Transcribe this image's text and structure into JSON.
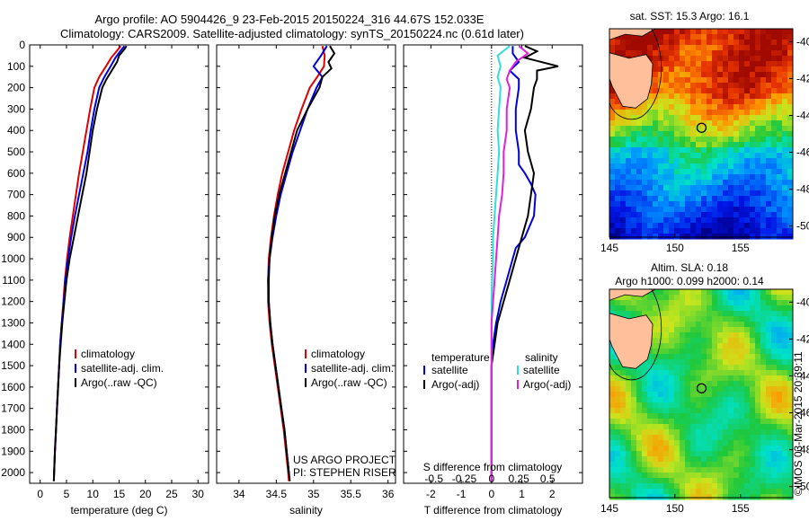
{
  "header": {
    "line1": "Argo profile: AO 5904426_9 23-Feb-2015 20150224_316 44.67S 152.033E",
    "line2": "Climatology: CARS2009. Satellite-adjusted climatology: synTS_20150224.nc (0.61d later)"
  },
  "credit": "©IMOS 03-Mar-2015 20:39:11",
  "colors": {
    "climatology": "#e00000",
    "satellite": "#0000e0",
    "argo": "#000000",
    "sal_satellite": "#33dddd",
    "sal_argo": "#dd22dd"
  },
  "chart_data": [
    {
      "type": "line",
      "name": "temperature",
      "xlabel": "temperature (deg C)",
      "xlim": [
        -2,
        32
      ],
      "ylim": [
        2050,
        0
      ],
      "xticks": [
        "0",
        "5",
        "10",
        "15",
        "20",
        "25",
        "30"
      ],
      "yticks": [
        "0",
        "100",
        "200",
        "300",
        "400",
        "500",
        "600",
        "700",
        "800",
        "900",
        "1000",
        "1100",
        "1200",
        "1300",
        "1400",
        "1500",
        "1600",
        "1700",
        "1800",
        "1900",
        "2000"
      ],
      "legend": [
        "climatology",
        "satellite-adj. clim.",
        "Argo(..raw -QC)"
      ],
      "series": [
        {
          "name": "climatology",
          "color": "#e00000",
          "points": [
            [
              15.3,
              5
            ],
            [
              14.5,
              30
            ],
            [
              13.5,
              60
            ],
            [
              12.5,
              100
            ],
            [
              11.2,
              150
            ],
            [
              10.3,
              200
            ],
            [
              9.5,
              300
            ],
            [
              8.8,
              400
            ],
            [
              8.1,
              500
            ],
            [
              7.4,
              600
            ],
            [
              6.8,
              700
            ],
            [
              6.2,
              800
            ],
            [
              5.6,
              900
            ],
            [
              5.1,
              1000
            ],
            [
              4.7,
              1100
            ],
            [
              4.4,
              1200
            ],
            [
              4.1,
              1300
            ],
            [
              3.8,
              1400
            ],
            [
              3.6,
              1500
            ],
            [
              3.4,
              1600
            ],
            [
              3.2,
              1700
            ],
            [
              3.0,
              1800
            ],
            [
              2.8,
              1900
            ],
            [
              2.65,
              2000
            ],
            [
              2.6,
              2040
            ]
          ]
        },
        {
          "name": "satellite",
          "color": "#0000e0",
          "points": [
            [
              16.0,
              5
            ],
            [
              15.2,
              30
            ],
            [
              14.3,
              60
            ],
            [
              13.4,
              100
            ],
            [
              12.2,
              150
            ],
            [
              11.2,
              200
            ],
            [
              10.3,
              300
            ],
            [
              9.6,
              400
            ],
            [
              9.0,
              500
            ],
            [
              8.2,
              600
            ],
            [
              7.4,
              700
            ],
            [
              6.6,
              800
            ],
            [
              5.9,
              900
            ],
            [
              5.3,
              1000
            ],
            [
              4.8,
              1100
            ],
            [
              4.5,
              1200
            ],
            [
              4.1,
              1300
            ],
            [
              3.8,
              1400
            ],
            [
              3.6,
              1500
            ],
            [
              3.4,
              1600
            ],
            [
              3.2,
              1700
            ],
            [
              3.0,
              1800
            ],
            [
              2.8,
              1900
            ],
            [
              2.65,
              2000
            ],
            [
              2.6,
              2040
            ]
          ]
        },
        {
          "name": "argo",
          "color": "#000000",
          "points": [
            [
              16.4,
              5
            ],
            [
              16.0,
              20
            ],
            [
              15.0,
              50
            ],
            [
              14.6,
              80
            ],
            [
              13.6,
              120
            ],
            [
              12.6,
              160
            ],
            [
              11.8,
              200
            ],
            [
              10.8,
              300
            ],
            [
              10.0,
              400
            ],
            [
              9.4,
              500
            ],
            [
              8.8,
              600
            ],
            [
              8.0,
              700
            ],
            [
              7.2,
              800
            ],
            [
              6.4,
              900
            ],
            [
              5.6,
              1000
            ],
            [
              5.0,
              1100
            ],
            [
              4.6,
              1200
            ],
            [
              4.2,
              1300
            ],
            [
              3.9,
              1400
            ],
            [
              3.6,
              1500
            ],
            [
              3.4,
              1600
            ],
            [
              3.2,
              1700
            ],
            [
              3.0,
              1800
            ],
            [
              2.8,
              1900
            ],
            [
              2.65,
              2000
            ],
            [
              2.6,
              2040
            ]
          ]
        }
      ]
    },
    {
      "type": "line",
      "name": "salinity",
      "xlabel": "salinity",
      "xlim": [
        33.7,
        36.1
      ],
      "ylim": [
        2050,
        0
      ],
      "xticks": [
        "34",
        "34.5",
        "35",
        "35.5",
        "36"
      ],
      "legend": [
        "climatology",
        "satellite-adj. clim.",
        "Argo(..raw -QC)"
      ],
      "annotations": [
        "US ARGO PROJECT",
        "PI: STEPHEN RISER"
      ],
      "series": [
        {
          "name": "climatology",
          "color": "#e00000",
          "points": [
            [
              35.12,
              5
            ],
            [
              35.15,
              50
            ],
            [
              35.14,
              100
            ],
            [
              35.05,
              150
            ],
            [
              34.95,
              200
            ],
            [
              34.84,
              300
            ],
            [
              34.74,
              400
            ],
            [
              34.66,
              500
            ],
            [
              34.58,
              600
            ],
            [
              34.52,
              700
            ],
            [
              34.47,
              800
            ],
            [
              34.43,
              900
            ],
            [
              34.4,
              1000
            ],
            [
              34.39,
              1100
            ],
            [
              34.39,
              1200
            ],
            [
              34.41,
              1300
            ],
            [
              34.44,
              1400
            ],
            [
              34.48,
              1500
            ],
            [
              34.52,
              1600
            ],
            [
              34.56,
              1700
            ],
            [
              34.6,
              1800
            ],
            [
              34.63,
              1900
            ],
            [
              34.66,
              2000
            ],
            [
              34.67,
              2040
            ]
          ]
        },
        {
          "name": "satellite",
          "color": "#0000e0",
          "points": [
            [
              35.18,
              5
            ],
            [
              35.1,
              50
            ],
            [
              35.0,
              100
            ],
            [
              35.12,
              150
            ],
            [
              35.04,
              200
            ],
            [
              34.92,
              300
            ],
            [
              34.82,
              400
            ],
            [
              34.72,
              500
            ],
            [
              34.64,
              600
            ],
            [
              34.56,
              700
            ],
            [
              34.5,
              800
            ],
            [
              34.45,
              900
            ],
            [
              34.41,
              1000
            ],
            [
              34.39,
              1100
            ],
            [
              34.4,
              1200
            ],
            [
              34.42,
              1300
            ],
            [
              34.45,
              1400
            ],
            [
              34.49,
              1500
            ],
            [
              34.53,
              1600
            ],
            [
              34.57,
              1700
            ],
            [
              34.61,
              1800
            ],
            [
              34.64,
              1900
            ],
            [
              34.67,
              2000
            ],
            [
              34.68,
              2040
            ]
          ]
        },
        {
          "name": "argo",
          "color": "#000000",
          "points": [
            [
              35.22,
              5
            ],
            [
              35.28,
              40
            ],
            [
              35.2,
              80
            ],
            [
              35.24,
              110
            ],
            [
              35.12,
              150
            ],
            [
              35.08,
              200
            ],
            [
              34.92,
              300
            ],
            [
              34.78,
              400
            ],
            [
              34.7,
              500
            ],
            [
              34.62,
              600
            ],
            [
              34.54,
              700
            ],
            [
              34.48,
              800
            ],
            [
              34.44,
              900
            ],
            [
              34.41,
              1000
            ],
            [
              34.4,
              1100
            ],
            [
              34.4,
              1200
            ],
            [
              34.42,
              1300
            ],
            [
              34.45,
              1400
            ],
            [
              34.49,
              1500
            ],
            [
              34.53,
              1600
            ],
            [
              34.57,
              1700
            ],
            [
              34.61,
              1800
            ],
            [
              34.64,
              1900
            ],
            [
              34.67,
              2000
            ],
            [
              34.68,
              2040
            ]
          ]
        }
      ]
    },
    {
      "type": "line",
      "name": "difference",
      "xlabel": "T difference from climatology",
      "xlabel_top": "S difference from climatology",
      "xlim": [
        -2.9,
        3.0
      ],
      "ylim": [
        2050,
        0
      ],
      "xticks": [
        "-2",
        "-1",
        "0",
        "1",
        "2"
      ],
      "xticks_s": [
        "-0.5",
        "-0.25",
        "0",
        "0.25",
        "0.5"
      ],
      "legend_temperature": {
        "title": "temperature",
        "items": [
          "satellite",
          "Argo(-adj)"
        ]
      },
      "legend_salinity": {
        "title": "salinity",
        "items": [
          "satellite",
          "Argo(-adj)"
        ]
      },
      "series": [
        {
          "name": "T satellite",
          "color": "#0000e0",
          "points": [
            [
              0.7,
              5
            ],
            [
              0.7,
              40
            ],
            [
              0.9,
              80
            ],
            [
              0.6,
              120
            ],
            [
              0.9,
              160
            ],
            [
              0.9,
              200
            ],
            [
              0.8,
              300
            ],
            [
              0.8,
              400
            ],
            [
              0.9,
              500
            ],
            [
              0.9,
              560
            ],
            [
              1.1,
              600
            ],
            [
              1.3,
              650
            ],
            [
              1.45,
              700
            ],
            [
              1.4,
              800
            ],
            [
              1.1,
              900
            ],
            [
              0.8,
              950
            ],
            [
              0.7,
              1000
            ],
            [
              0.5,
              1100
            ],
            [
              0.3,
              1200
            ],
            [
              0.15,
              1300
            ],
            [
              0.05,
              1400
            ],
            [
              0.0,
              1500
            ],
            [
              0.0,
              2040
            ]
          ]
        },
        {
          "name": "T argo",
          "color": "#000000",
          "points": [
            [
              1.1,
              5
            ],
            [
              1.5,
              30
            ],
            [
              1.1,
              60
            ],
            [
              2.2,
              100
            ],
            [
              1.5,
              120
            ],
            [
              1.5,
              160
            ],
            [
              1.4,
              200
            ],
            [
              1.3,
              300
            ],
            [
              1.1,
              400
            ],
            [
              1.2,
              500
            ],
            [
              1.4,
              600
            ],
            [
              1.3,
              700
            ],
            [
              1.2,
              800
            ],
            [
              1.0,
              900
            ],
            [
              0.8,
              1000
            ],
            [
              0.6,
              1100
            ],
            [
              0.4,
              1200
            ],
            [
              0.2,
              1300
            ],
            [
              0.1,
              1400
            ],
            [
              0.0,
              1500
            ],
            [
              0.0,
              2040
            ]
          ]
        },
        {
          "name": "S satellite",
          "color": "#33dddd",
          "points": [
            [
              0.6,
              5
            ],
            [
              0.2,
              50
            ],
            [
              0.3,
              100
            ],
            [
              0.2,
              150
            ],
            [
              0.3,
              200
            ],
            [
              0.25,
              300
            ],
            [
              0.2,
              400
            ],
            [
              0.25,
              500
            ],
            [
              0.2,
              600
            ],
            [
              0.15,
              700
            ],
            [
              0.1,
              800
            ],
            [
              0.05,
              900
            ],
            [
              0.05,
              1000
            ],
            [
              0.02,
              1100
            ],
            [
              0.0,
              1200
            ],
            [
              0.0,
              2040
            ]
          ]
        },
        {
          "name": "S argo",
          "color": "#dd22dd",
          "points": [
            [
              0.9,
              5
            ],
            [
              1.2,
              40
            ],
            [
              0.8,
              80
            ],
            [
              0.6,
              120
            ],
            [
              0.5,
              160
            ],
            [
              0.6,
              200
            ],
            [
              0.5,
              300
            ],
            [
              0.5,
              400
            ],
            [
              0.4,
              500
            ],
            [
              0.4,
              600
            ],
            [
              0.35,
              700
            ],
            [
              0.25,
              800
            ],
            [
              0.2,
              900
            ],
            [
              0.15,
              1000
            ],
            [
              0.1,
              1100
            ],
            [
              0.05,
              1200
            ],
            [
              0.0,
              1300
            ],
            [
              0.0,
              2040
            ]
          ]
        }
      ]
    },
    {
      "type": "heatmap",
      "name": "sst-map",
      "title": "sat. SST: 15.3 Argo: 16.1",
      "xlim": [
        145,
        159
      ],
      "ylim": [
        -50.6,
        -39.3
      ],
      "xticks": [
        "145",
        "150",
        "155"
      ],
      "yticks": [
        "-40",
        "-42",
        "-44",
        "-46",
        "-48",
        "-50"
      ],
      "marker": {
        "lon": 152.033,
        "lat": -44.67
      }
    },
    {
      "type": "heatmap",
      "name": "sla-map",
      "title": "Altim. SLA: 0.18",
      "subtitle": "Argo h1000: 0.099 h2000: 0.14",
      "xlim": [
        145,
        159
      ],
      "ylim": [
        -50.6,
        -39.3
      ],
      "xticks": [
        "145",
        "150",
        "155"
      ],
      "yticks": [
        "-40",
        "-42",
        "-44",
        "-46",
        "-48",
        "-50"
      ],
      "marker": {
        "lon": 152.033,
        "lat": -44.67
      }
    }
  ]
}
